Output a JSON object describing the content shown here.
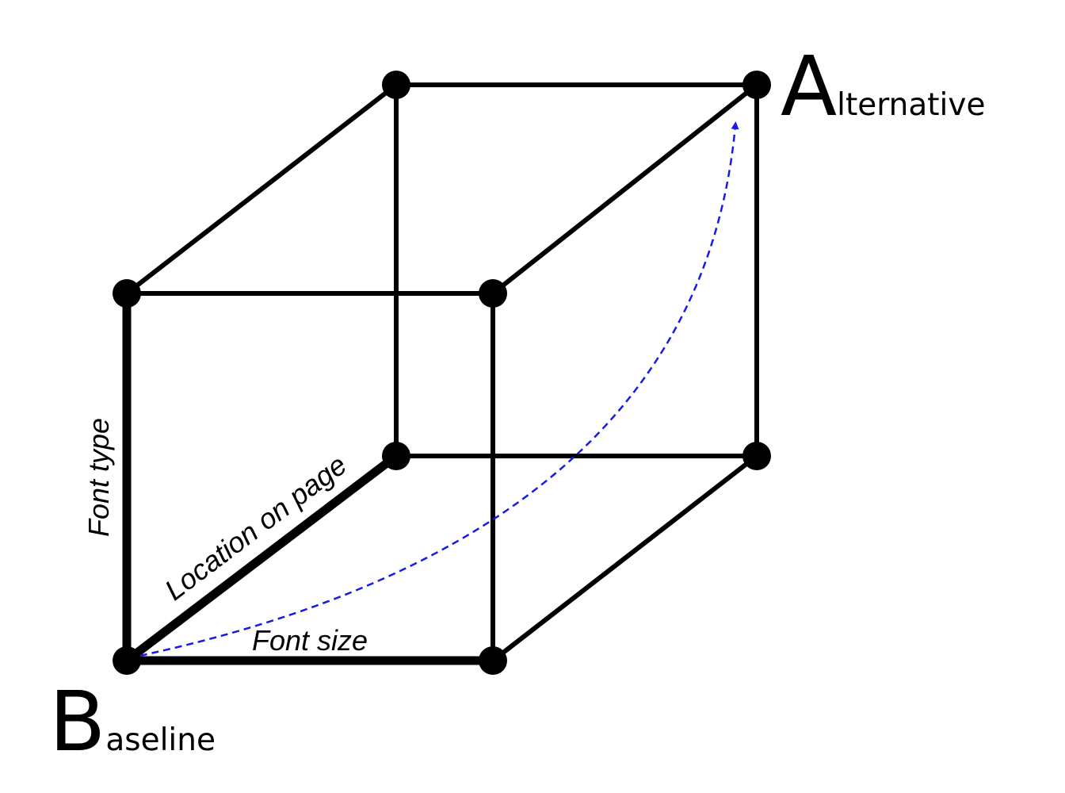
{
  "diagram": {
    "edge_labels": {
      "font_type": "Font type",
      "location_on_page": "Location on page",
      "font_size": "Font size"
    },
    "corner_labels": {
      "alternative": {
        "initial": "A",
        "rest": "lternative"
      },
      "baseline": {
        "initial": "B",
        "rest": "aseline"
      }
    },
    "colors": {
      "edges": "#000000",
      "vertices": "#000000",
      "path_arrow": "#1a1ae6"
    }
  }
}
